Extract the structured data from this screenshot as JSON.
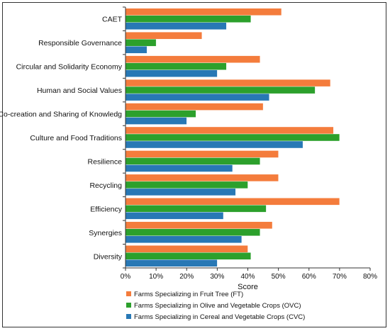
{
  "chart_data": {
    "type": "bar",
    "orientation": "horizontal",
    "categories": [
      "CAET",
      "Responsible Governance",
      "Circular and Solidarity Economy",
      "Human and Social Values",
      "Co-creation and Sharing of Knowledg",
      "Culture and Food Traditions",
      "Resilience",
      "Recycling",
      "Efficiency",
      "Synergies",
      "Diversity"
    ],
    "series": [
      {
        "name": "Farms Specializing in Fruit Tree (FT)",
        "color": "#f47c3c",
        "values": [
          51,
          25,
          44,
          67,
          45,
          68,
          50,
          50,
          70,
          48,
          40
        ]
      },
      {
        "name": "Farms Specializing in Olive and Vegetable Crops (OVC)",
        "color": "#2ca02c",
        "values": [
          41,
          10,
          33,
          62,
          23,
          70,
          44,
          40,
          46,
          44,
          41
        ]
      },
      {
        "name": "Farms Specializing in Cereal and Vegetable Crops (CVC)",
        "color": "#2878b5",
        "values": [
          33,
          7,
          30,
          47,
          20,
          58,
          35,
          36,
          32,
          38,
          30
        ]
      }
    ],
    "xlabel": "Score",
    "ylabel": "",
    "xlim": [
      0,
      80
    ],
    "xticks": [
      "0%",
      "10%",
      "20%",
      "30%",
      "40%",
      "50%",
      "60%",
      "70%",
      "80%"
    ],
    "grid": false,
    "legend_position": "bottom"
  }
}
